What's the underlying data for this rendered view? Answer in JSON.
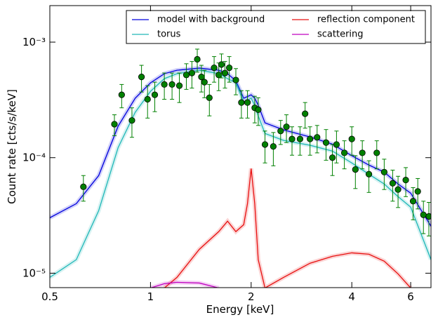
{
  "chart_data": {
    "type": "line",
    "xlabel": "Energy [keV]",
    "ylabel": "Count rate [cts/s/keV]",
    "xscale": "log",
    "yscale": "log",
    "xlim": [
      0.5,
      6.9
    ],
    "ylim": [
      7.5e-06,
      0.00207
    ],
    "xticks": [
      0.5,
      1,
      2,
      4,
      6
    ],
    "yticks": [
      {
        "value": 0.001,
        "label": "10⁻³"
      },
      {
        "value": 0.0001,
        "label": "10⁻⁴"
      },
      {
        "value": 1e-05,
        "label": "10⁻⁵"
      }
    ],
    "legend": "upper right",
    "x": [
      0.5,
      0.6,
      0.7,
      0.8,
      0.9,
      1.0,
      1.1,
      1.2,
      1.4,
      1.6,
      1.7,
      1.8,
      1.9,
      1.95,
      2.0,
      2.05,
      2.1,
      2.2,
      2.5,
      3,
      3.5,
      4,
      4.5,
      5,
      5.5,
      6,
      6.9
    ],
    "series": [
      {
        "name": "model with background",
        "color": "#0000dd",
        "values": [
          3.02e-05,
          4e-05,
          7e-05,
          0.000187,
          0.000327,
          0.000444,
          0.000533,
          0.000571,
          0.000596,
          0.000571,
          0.000533,
          0.000463,
          0.000327,
          0.000338,
          0.00035,
          0.000327,
          0.000284,
          0.0002,
          0.000174,
          0.000151,
          0.000131,
          0.000104,
          8.63e-05,
          7.5e-05,
          5.92e-05,
          4.93e-05,
          2.55e-05
        ]
      },
      {
        "name": "reflection component",
        "color": "#e81010",
        "values": [
          null,
          null,
          null,
          null,
          null,
          null,
          7.45e-06,
          9.2e-06,
          1.61e-05,
          2.29e-05,
          2.82e-05,
          2.29e-05,
          2.63e-05,
          4e-05,
          8.05e-05,
          4e-05,
          1.31e-05,
          7.45e-06,
          9.2e-06,
          1.22e-05,
          1.4e-05,
          1.5e-05,
          1.46e-05,
          1.27e-05,
          9.86e-06,
          7.45e-06,
          null
        ]
      },
      {
        "name": "torus",
        "color": "#20b8b8",
        "values": [
          9.2e-06,
          1.31e-05,
          3.48e-05,
          0.000122,
          0.000247,
          0.000375,
          0.000483,
          0.000533,
          0.000571,
          0.000533,
          0.000483,
          0.000444,
          0.000304,
          0.000315,
          0.000327,
          0.000284,
          0.00023,
          0.000162,
          0.000141,
          0.000128,
          0.000114,
          8.99e-05,
          7.19e-05,
          5.92e-05,
          4.6e-05,
          3.73e-05,
          1.31e-05
        ]
      },
      {
        "name": "scattering",
        "color": "#c000c0",
        "values": [
          null,
          null,
          null,
          null,
          null,
          7.45e-06,
          8.11e-06,
          8.34e-06,
          8.22e-06,
          7.45e-06,
          null,
          null,
          null,
          null,
          null,
          null,
          null,
          null,
          null,
          null,
          null,
          null,
          null,
          null,
          null,
          null,
          null
        ]
      }
    ],
    "points": {
      "color": "#008000",
      "x": [
        0.63,
        0.78,
        0.82,
        0.88,
        0.94,
        0.98,
        1.03,
        1.1,
        1.16,
        1.22,
        1.28,
        1.33,
        1.38,
        1.42,
        1.45,
        1.5,
        1.55,
        1.6,
        1.63,
        1.67,
        1.72,
        1.8,
        1.87,
        1.95,
        2.05,
        2.1,
        2.2,
        2.33,
        2.45,
        2.55,
        2.65,
        2.8,
        2.9,
        3.0,
        3.15,
        3.35,
        3.5,
        3.6,
        3.8,
        4.0,
        4.1,
        4.3,
        4.5,
        4.75,
        5.0,
        5.3,
        5.5,
        5.8,
        6.1,
        6.3,
        6.55,
        6.8
      ],
      "values": [
        5.6e-05,
        0.000195,
        0.00035,
        0.00021,
        0.0005,
        0.00032,
        0.00035,
        0.00043,
        0.00043,
        0.00042,
        0.00052,
        0.00054,
        0.00071,
        0.0005,
        0.00045,
        0.00033,
        0.0006,
        0.00052,
        0.00064,
        0.00054,
        0.0006,
        0.00047,
        0.0003,
        0.0003,
        0.00027,
        0.00026,
        0.00013,
        0.000125,
        0.00017,
        0.000185,
        0.000145,
        0.000145,
        0.00024,
        0.000145,
        0.00015,
        0.000135,
        0.0001,
        0.00013,
        0.00011,
        0.000145,
        7.9e-05,
        0.00011,
        7.2e-05,
        0.00011,
        7.5e-05,
        6e-05,
        5.3e-05,
        6.4e-05,
        4.2e-05,
        5.1e-05,
        3.2e-05,
        3.1e-05
      ],
      "yerr": [
        1.4e-05,
        4e-05,
        8e-05,
        6e-05,
        0.00013,
        0.0001,
        0.0001,
        0.00011,
        0.00011,
        0.00012,
        0.00013,
        0.00014,
        0.00016,
        0.00013,
        0.00012,
        0.0001,
        0.00015,
        0.00014,
        0.00015,
        0.00014,
        0.00015,
        0.00012,
        8e-05,
        8e-05,
        7e-05,
        7e-05,
        4e-05,
        4e-05,
        4e-05,
        5e-05,
        4e-05,
        4e-05,
        6e-05,
        4e-05,
        4e-05,
        4e-05,
        3e-05,
        4e-05,
        3e-05,
        4e-05,
        2.5e-05,
        3e-05,
        2.2e-05,
        3e-05,
        2.2e-05,
        1.8e-05,
        1.6e-05,
        1.8e-05,
        1.3e-05,
        1.5e-05,
        1e-05,
        1e-05
      ]
    }
  }
}
